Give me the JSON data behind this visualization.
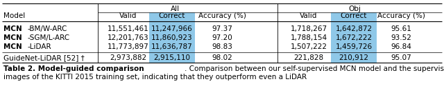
{
  "rows": [
    {
      "model": "MCN-BM/W-ARC",
      "bold_prefix": "MCN",
      "all_valid": "11,551,461",
      "all_correct": "11,247,966",
      "all_acc": "97.37",
      "obj_valid": "1,718,267",
      "obj_correct": "1,642,872",
      "obj_acc": "95.61",
      "separator_before": false
    },
    {
      "model": "MCN-SGM/L-ARC",
      "bold_prefix": "MCN",
      "all_valid": "12,201,763",
      "all_correct": "11,860,923",
      "all_acc": "97.20",
      "obj_valid": "1,788,154",
      "obj_correct": "1,672,222",
      "obj_acc": "93.52",
      "separator_before": false
    },
    {
      "model": "MCN-LiDAR",
      "bold_prefix": "MCN",
      "all_valid": "11,773,897",
      "all_correct": "11,636,787",
      "all_acc": "98.83",
      "obj_valid": "1,507,222",
      "obj_correct": "1,459,726",
      "obj_acc": "96.84",
      "separator_before": false
    },
    {
      "model": "GuideNet-LiDAR [52] †",
      "bold_prefix": "",
      "all_valid": "2,973,882",
      "all_correct": "2,915,110",
      "all_acc": "98.02",
      "obj_valid": "221,828",
      "obj_correct": "210,912",
      "obj_acc": "95.07",
      "separator_before": true
    }
  ],
  "bg_color": "#ffffff",
  "text_color": "#000000",
  "highlight_color": "#8FC8E8",
  "font_size": 7.5,
  "caption_font_size": 7.5
}
